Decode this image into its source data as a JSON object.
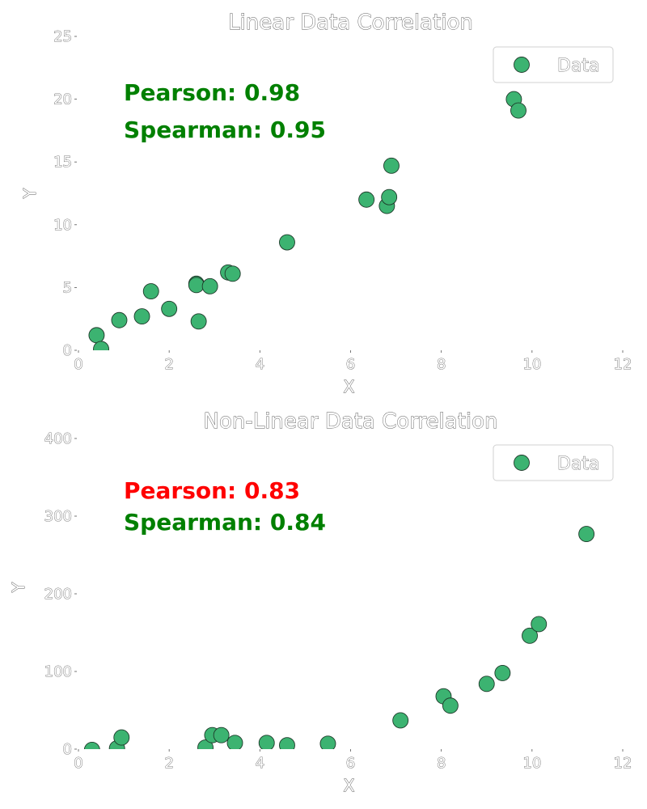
{
  "chart_data": [
    {
      "type": "scatter",
      "title": "Linear Data Correlation",
      "xlabel": "X",
      "ylabel": "Y",
      "xlim": [
        0,
        12
      ],
      "ylim": [
        0,
        25
      ],
      "xticks": [
        "0",
        "2",
        "4",
        "6",
        "8",
        "10",
        "12"
      ],
      "yticks": [
        "0",
        "5",
        "10",
        "15",
        "20",
        "25"
      ],
      "grid": false,
      "legend_position": "top-right",
      "point_color": "#3cb371",
      "series": [
        {
          "name": "Data",
          "x": [
            0.4,
            0.5,
            0.9,
            1.4,
            1.6,
            2.0,
            2.6,
            2.6,
            2.65,
            2.9,
            3.3,
            3.4,
            4.6,
            6.35,
            6.8,
            6.85,
            6.9,
            9.6,
            9.7
          ],
          "y": [
            1.2,
            0.1,
            2.4,
            2.7,
            4.7,
            3.3,
            5.3,
            5.2,
            2.3,
            5.1,
            6.2,
            6.1,
            8.6,
            12.0,
            11.5,
            12.2,
            14.7,
            20.0,
            19.1
          ]
        }
      ],
      "annotations": [
        {
          "text": "Pearson: 0.98",
          "color": "#008000"
        },
        {
          "text": "Spearman: 0.95",
          "color": "#008000"
        }
      ]
    },
    {
      "type": "scatter",
      "title": "Non-Linear Data Correlation",
      "xlabel": "X",
      "ylabel": "Y",
      "xlim": [
        0,
        12
      ],
      "ylim": [
        0,
        400
      ],
      "xticks": [
        "0",
        "2",
        "4",
        "6",
        "8",
        "10",
        "12"
      ],
      "yticks": [
        "0",
        "100",
        "200",
        "300",
        "400"
      ],
      "grid": false,
      "legend_position": "top-right",
      "point_color": "#3cb371",
      "series": [
        {
          "name": "Data",
          "x": [
            0.3,
            0.85,
            0.95,
            2.8,
            2.95,
            3.15,
            3.45,
            4.15,
            4.6,
            5.5,
            7.1,
            8.05,
            8.2,
            9.0,
            9.35,
            9.95,
            10.15,
            11.2
          ],
          "y": [
            -1,
            1,
            15,
            2,
            18,
            18,
            8,
            8,
            5,
            7,
            37,
            68,
            56,
            84,
            98,
            146,
            161,
            277
          ]
        }
      ],
      "annotations": [
        {
          "text": "Pearson: 0.83",
          "color": "#ff0000"
        },
        {
          "text": "Spearman: 0.84",
          "color": "#008000"
        }
      ]
    }
  ]
}
